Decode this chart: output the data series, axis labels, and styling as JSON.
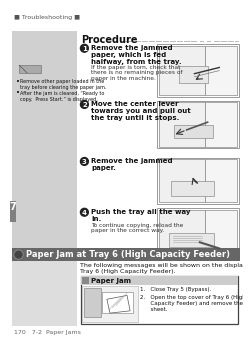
{
  "bg_color": "#ffffff",
  "header_text": "■ Troubleshooting ■",
  "sidebar_color": "#d0d0d0",
  "tab_color": "#808080",
  "tab_text": "7",
  "procedure_title": "Procedure",
  "steps": [
    {
      "number": "1",
      "bold_text": "Remove the jammed\npaper, which is fed\nhalfway, from the tray.",
      "detail_text": "If the paper is torn, check that\nthere is no remaining pieces of\npaper in the machine."
    },
    {
      "number": "2",
      "bold_text": "Move the center lever\ntowards you and pull out\nthe tray until it stops.",
      "detail_text": ""
    },
    {
      "number": "3",
      "bold_text": "Remove the jammed\npaper.",
      "detail_text": ""
    },
    {
      "number": "4",
      "bold_text": "Push the tray all the way\nin.",
      "detail_text": "To continue copying, reload the\npaper in the correct way."
    }
  ],
  "sidebar_note_lines": [
    "Remove other paper loaded in the",
    "tray before clearing the paper jam.",
    "After the jam is cleared, “Ready to",
    "copy.  Press Start.” is displayed."
  ],
  "section_title": "Paper Jam at Tray 6 (High Capacity Feeder)",
  "section_intro1": "The following messages will be shown on the display if paper is jammed at",
  "section_intro2": "Tray 6 (High Capacity Feeder).",
  "paper_jam_box_title": "Paper Jam",
  "paper_jam_step1": "1.   Close Tray 5 (Bypass).",
  "paper_jam_step2a": "2.   Open the top cover of Tray 6 (High",
  "paper_jam_step2b": "      Capacity Feeder) and remove the jammed",
  "paper_jam_step2c": "      sheet.",
  "footer_text": "170   7-2  Paper Jams",
  "section_bar_color": "#666666",
  "section_title_color": "#ffffff",
  "step_circle_color": "#222222",
  "step_number_color": "#ffffff",
  "dot_line_color": "#aaaaaa",
  "image_border_color": "#999999",
  "note_icon_color": "#888888"
}
